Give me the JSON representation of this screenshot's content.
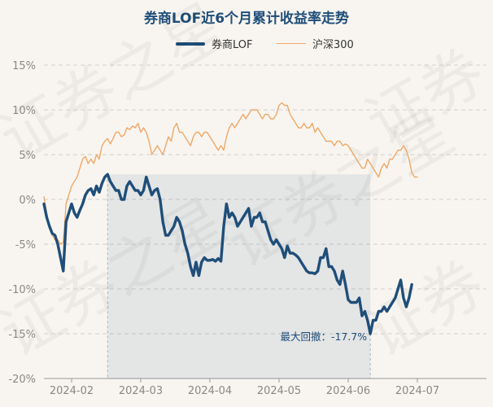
{
  "chart_data": {
    "type": "line",
    "title": "券商LOF近6个月累计收益率走势",
    "xlabel": "",
    "ylabel": "",
    "ylim": [
      -20,
      15
    ],
    "yticks": [
      15,
      10,
      5,
      0,
      -5,
      -10,
      -15,
      -20
    ],
    "ytick_labels": [
      "15%",
      "10%",
      "5%",
      "0%",
      "-5%",
      "-10%",
      "-15%",
      "-20%"
    ],
    "x_tick_labels": [
      "2024-02",
      "2024-03",
      "2024-04",
      "2024-05",
      "2024-06",
      "2024-07"
    ],
    "x_tick_positions": [
      10,
      35,
      60,
      85,
      110,
      135
    ],
    "xlim": [
      0,
      160
    ],
    "grid": true,
    "legend_position": "top-center",
    "series": [
      {
        "name": "券商LOF",
        "color": "#1f4e79",
        "values": [
          -0.5,
          -2.0,
          -3.0,
          -3.8,
          -4.0,
          -5.0,
          -6.5,
          -8.0,
          -2.5,
          -1.5,
          -0.5,
          -1.5,
          -2.0,
          -1.2,
          -0.5,
          0.5,
          1.0,
          1.2,
          0.5,
          1.5,
          0.8,
          1.8,
          2.5,
          2.8,
          2.0,
          1.5,
          1.0,
          1.0,
          0.0,
          0.0,
          1.5,
          2.0,
          1.5,
          1.0,
          1.0,
          0.5,
          1.0,
          2.5,
          1.5,
          0.5,
          1.0,
          1.2,
          0.0,
          -2.5,
          -4.0,
          -4.0,
          -3.5,
          -3.0,
          -2.0,
          -2.5,
          -3.5,
          -5.0,
          -6.0,
          -7.5,
          -8.5,
          -7.0,
          -8.5,
          -7.0,
          -6.5,
          -6.8,
          -6.8,
          -6.7,
          -6.9,
          -6.6,
          -6.9,
          -3.0,
          -0.5,
          -2.0,
          -1.5,
          -2.0,
          -3.0,
          -2.5,
          -2.0,
          -1.5,
          -1.0,
          -3.0,
          -2.0,
          -2.0,
          -1.5,
          -2.5,
          -2.5,
          -3.5,
          -4.5,
          -5.0,
          -4.5,
          -5.0,
          -5.5,
          -6.5,
          -5.2,
          -6.0,
          -6.0,
          -6.2,
          -6.5,
          -7.0,
          -7.5,
          -8.0,
          -8.2,
          -8.2,
          -8.3,
          -8.0,
          -6.5,
          -6.5,
          -5.5,
          -7.5,
          -7.5,
          -8.0,
          -9.0,
          -9.5,
          -8.0,
          -9.5,
          -11.2,
          -11.5,
          -11.5,
          -11.5,
          -11.0,
          -13.0,
          -12.5,
          -13.5,
          -15.0,
          -13.5,
          -13.5,
          -12.5,
          -12.5,
          -12.0,
          -12.5,
          -12.0,
          -11.5,
          -11.0,
          -10.0,
          -9.0,
          -11.0,
          -12.0,
          -11.0,
          -9.5
        ],
        "max_drawdown_label": "最大回撤：-17.7%"
      },
      {
        "name": "沪深300",
        "color": "#f0a868",
        "values": [
          0.3,
          -1.5,
          -3.0,
          -4.0,
          -4.5,
          -4.5,
          -5.0,
          -4.8,
          -0.5,
          0.5,
          1.5,
          2.0,
          2.5,
          3.5,
          4.5,
          4.8,
          4.0,
          4.5,
          4.0,
          5.0,
          4.5,
          6.0,
          6.5,
          6.8,
          6.2,
          6.8,
          7.5,
          7.5,
          7.0,
          7.2,
          8.0,
          7.8,
          8.2,
          8.0,
          8.5,
          7.5,
          8.0,
          7.5,
          6.5,
          5.0,
          5.5,
          6.0,
          5.5,
          5.0,
          6.0,
          7.0,
          6.5,
          8.0,
          8.5,
          7.5,
          7.5,
          7.0,
          6.5,
          6.0,
          7.0,
          7.5,
          7.5,
          7.0,
          7.5,
          7.5,
          7.0,
          6.5,
          6.0,
          5.5,
          6.0,
          5.5,
          7.0,
          8.0,
          8.5,
          8.0,
          8.5,
          9.0,
          9.5,
          9.0,
          9.5,
          10.0,
          10.0,
          10.0,
          9.5,
          9.0,
          9.5,
          9.5,
          9.0,
          9.0,
          9.5,
          10.5,
          10.8,
          10.5,
          10.5,
          9.5,
          9.0,
          8.5,
          8.0,
          8.0,
          8.5,
          8.0,
          8.0,
          8.5,
          7.5,
          8.0,
          7.5,
          7.0,
          6.5,
          6.5,
          6.5,
          6.0,
          6.5,
          6.5,
          6.0,
          6.2,
          6.0,
          5.5,
          5.0,
          4.5,
          4.0,
          3.5,
          3.5,
          4.5,
          4.0,
          3.5,
          3.0,
          2.5,
          3.5,
          4.0,
          3.5,
          4.5,
          4.5,
          5.0,
          5.5,
          5.5,
          6.0,
          5.5,
          4.5,
          3.0,
          2.5,
          2.5
        ]
      }
    ]
  }
}
